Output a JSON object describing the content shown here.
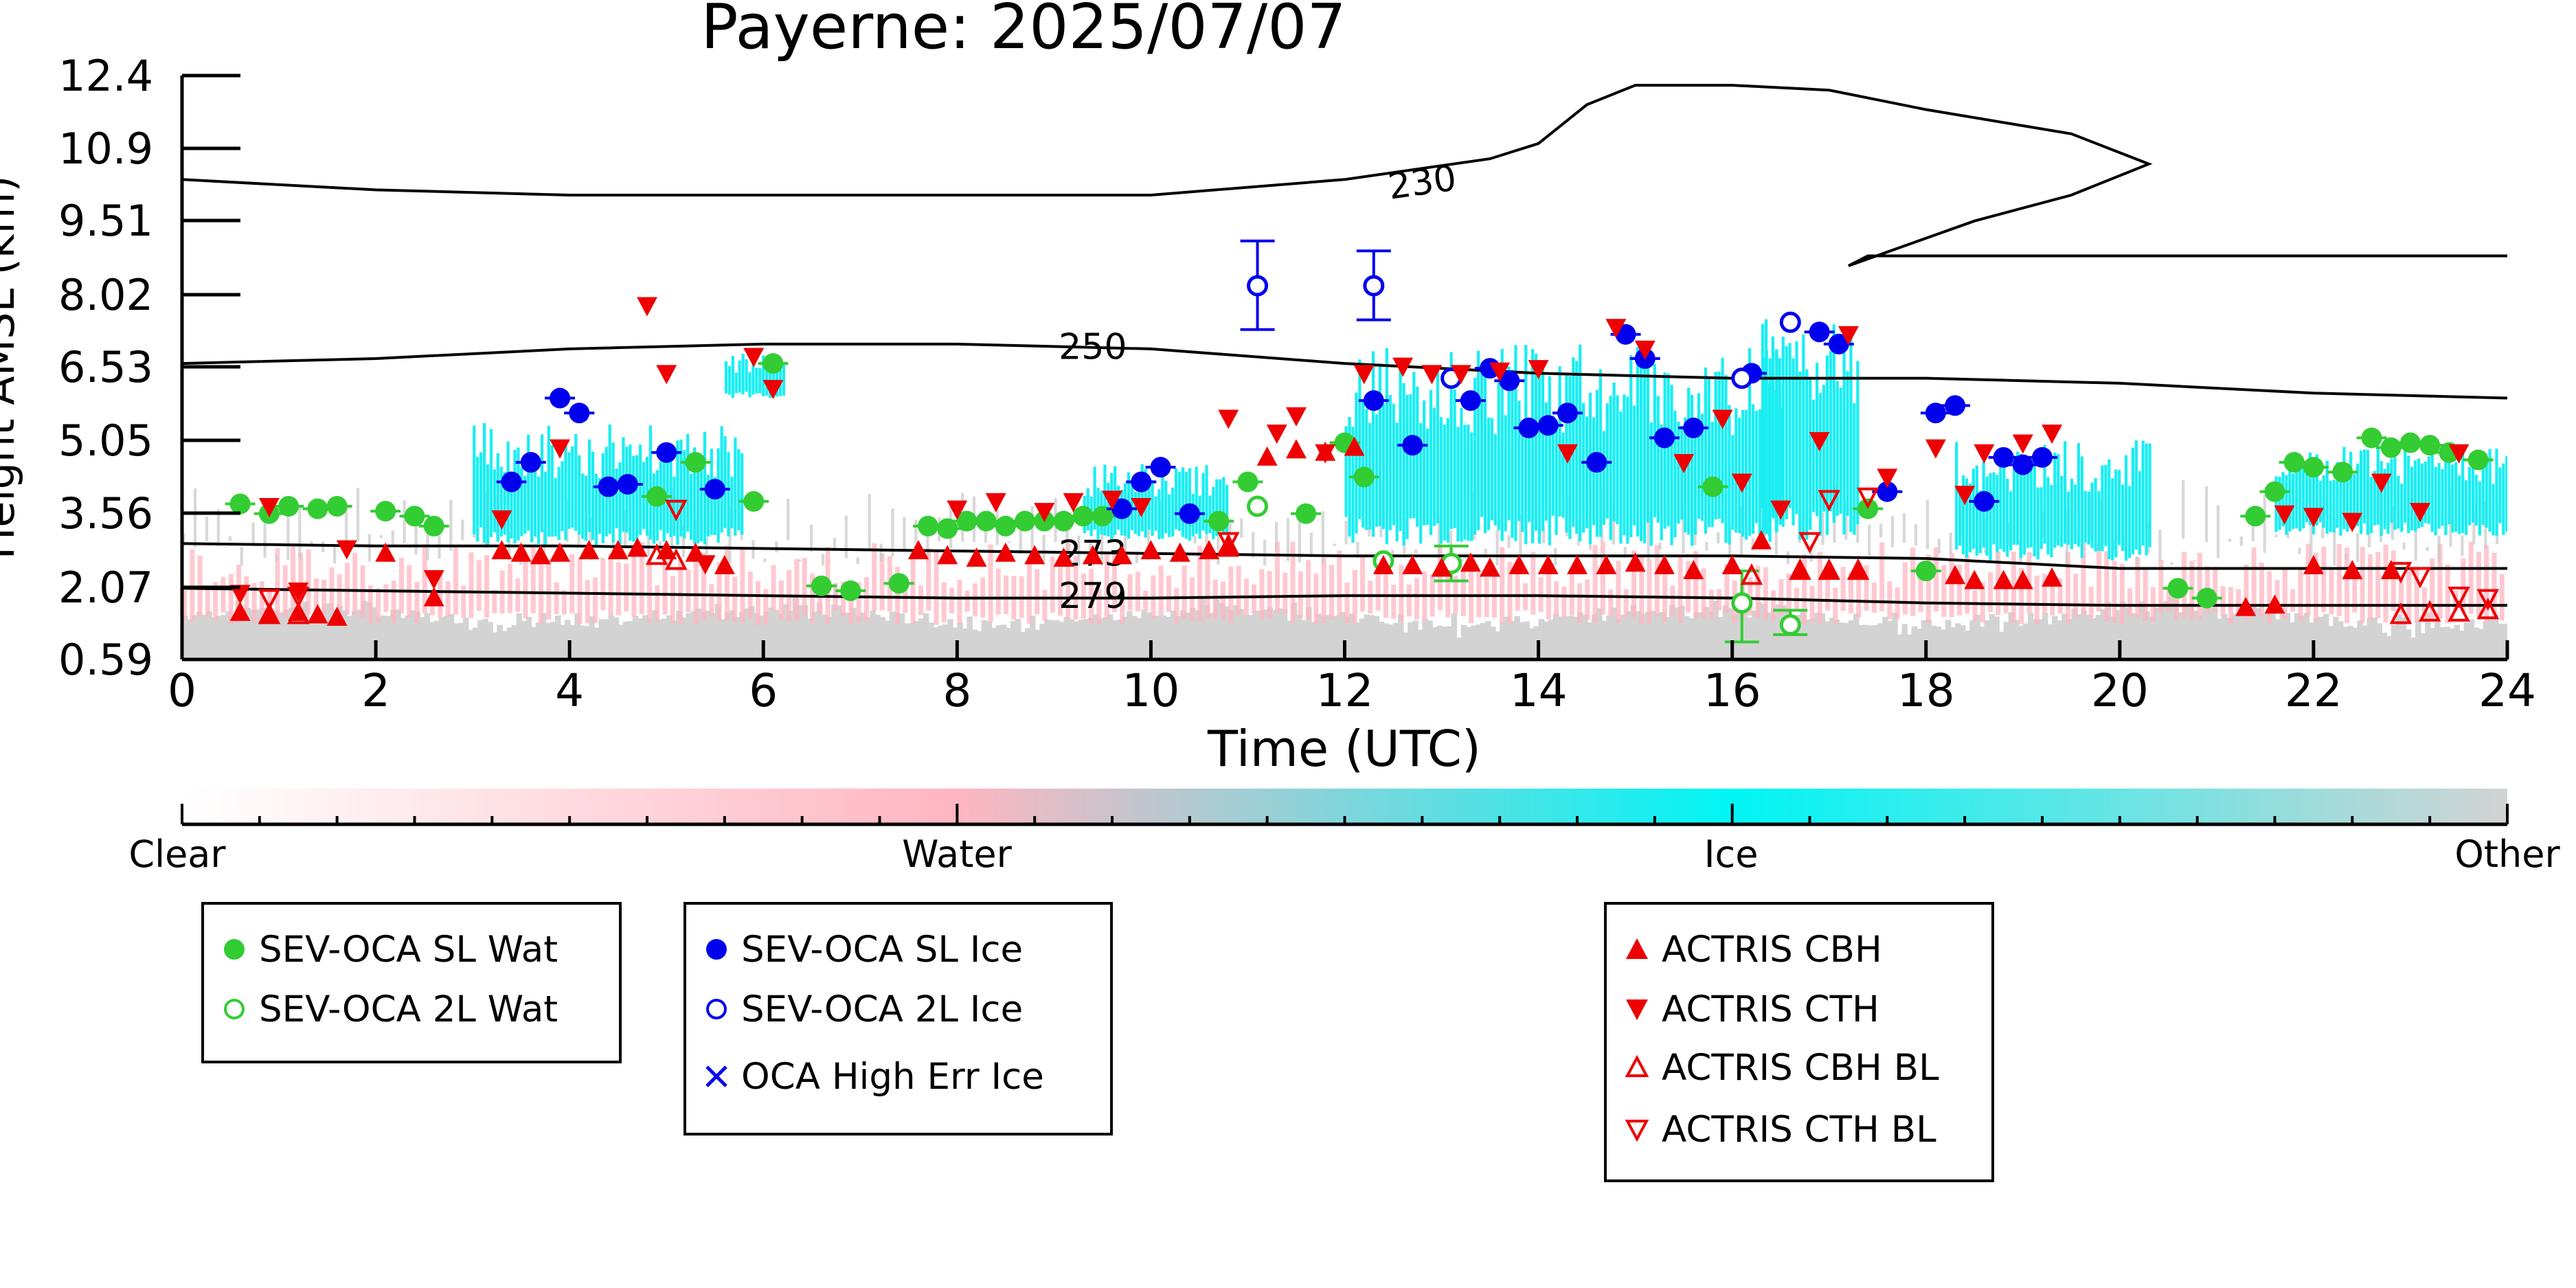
{
  "chart_data": {
    "type": "scatter",
    "title": "Payerne: 2025/07/07",
    "xlabel": "Time (UTC)",
    "ylabel": "Height AMSL (km)",
    "xlim": [
      0,
      24
    ],
    "ylim": [
      0.59,
      12.4
    ],
    "x_ticks": [
      "0",
      "2",
      "4",
      "6",
      "8",
      "10",
      "12",
      "14",
      "16",
      "18",
      "20",
      "22",
      "24"
    ],
    "y_ticks": [
      "0.59",
      "2.07",
      "3.56",
      "5.05",
      "6.53",
      "8.02",
      "9.51",
      "10.9",
      "12.4"
    ],
    "y_tick_values": [
      0.59,
      2.07,
      3.56,
      5.05,
      6.53,
      8.02,
      9.51,
      10.9,
      12.4
    ],
    "colorbar": {
      "labels": [
        "Clear",
        "Water",
        "Ice",
        "Other"
      ],
      "colors": [
        "#ffffff",
        "#ffb6c1",
        "#00ffff",
        "#d3d3d3"
      ]
    },
    "background_classification": {
      "note_free": true,
      "other_color": "#d3d3d3",
      "water_color": "#ffb6c1",
      "ice_color": "#19eef2",
      "ice_patches": [
        {
          "x": [
            3.0,
            5.8
          ],
          "y": [
            2.9,
            5.4
          ]
        },
        {
          "x": [
            5.6,
            6.2
          ],
          "y": [
            5.9,
            6.8
          ]
        },
        {
          "x": [
            9.3,
            10.8
          ],
          "y": [
            3.0,
            4.6
          ]
        },
        {
          "x": [
            12.0,
            16.5
          ],
          "y": [
            2.9,
            7.0
          ]
        },
        {
          "x": [
            16.3,
            17.3
          ],
          "y": [
            3.0,
            7.6
          ]
        },
        {
          "x": [
            18.3,
            20.3
          ],
          "y": [
            2.6,
            5.1
          ]
        },
        {
          "x": [
            21.6,
            24.0
          ],
          "y": [
            3.1,
            5.0
          ]
        }
      ]
    },
    "contours": [
      {
        "label": "230",
        "x": [
          0,
          2,
          4,
          6,
          8,
          10,
          12,
          13.5,
          14,
          14.5,
          15,
          16,
          17,
          18,
          19.5,
          20.3,
          19.5,
          18.5,
          17.2,
          17.4,
          18,
          20,
          24
        ],
        "y": [
          10.3,
          10.1,
          10.0,
          10.0,
          10.0,
          10.0,
          10.3,
          10.7,
          11.0,
          11.8,
          12.2,
          12.2,
          12.1,
          11.7,
          11.2,
          10.6,
          10.0,
          9.5,
          8.6,
          8.8,
          8.8,
          8.8,
          8.8
        ]
      },
      {
        "label": "250",
        "x": [
          0,
          2,
          4,
          6,
          8,
          10,
          12,
          14,
          16,
          18,
          20,
          22,
          24
        ],
        "y": [
          6.6,
          6.7,
          6.9,
          7.0,
          7.0,
          6.9,
          6.6,
          6.4,
          6.3,
          6.3,
          6.2,
          6.0,
          5.9
        ]
      },
      {
        "label": "273",
        "x": [
          0,
          2,
          4,
          6,
          8,
          10,
          12,
          14,
          16,
          18,
          20,
          22,
          24
        ],
        "y": [
          2.95,
          2.9,
          2.9,
          2.85,
          2.8,
          2.75,
          2.7,
          2.7,
          2.7,
          2.65,
          2.45,
          2.45,
          2.45
        ]
      },
      {
        "label": "279",
        "x": [
          0,
          2,
          4,
          6,
          8,
          10,
          12,
          14,
          16,
          18,
          20,
          22,
          24
        ],
        "y": [
          2.05,
          2.0,
          1.95,
          1.9,
          1.85,
          1.85,
          1.9,
          1.9,
          1.85,
          1.75,
          1.7,
          1.7,
          1.7
        ]
      }
    ],
    "series": [
      {
        "name": "SEV-OCA SL Wat",
        "marker": "filled-circle",
        "color": "#33cc33",
        "x": [
          0.6,
          0.9,
          1.1,
          1.4,
          1.6,
          2.1,
          2.4,
          2.6,
          4.9,
          5.3,
          5.9,
          6.1,
          6.6,
          6.9,
          7.4,
          7.7,
          7.9,
          8.1,
          8.3,
          8.5,
          8.7,
          8.9,
          9.1,
          9.3,
          9.5,
          10.7,
          11.0,
          11.6,
          12.0,
          12.2,
          15.8,
          17.4,
          18.0,
          20.6,
          20.9,
          21.4,
          21.6,
          21.8,
          22.0,
          22.3,
          22.6,
          22.8,
          23.0,
          23.2,
          23.4,
          23.7
        ],
        "y": [
          3.75,
          3.55,
          3.7,
          3.65,
          3.7,
          3.6,
          3.5,
          3.3,
          3.9,
          4.6,
          3.8,
          6.6,
          2.1,
          2.0,
          2.15,
          3.3,
          3.25,
          3.4,
          3.4,
          3.3,
          3.4,
          3.4,
          3.4,
          3.5,
          3.5,
          3.4,
          4.2,
          3.55,
          5.0,
          4.3,
          4.1,
          3.65,
          2.4,
          2.05,
          1.85,
          3.5,
          4.0,
          4.6,
          4.5,
          4.4,
          5.1,
          4.9,
          5.0,
          4.95,
          4.8,
          4.65
        ]
      },
      {
        "name": "SEV-OCA 2L Wat",
        "marker": "open-circle",
        "color": "#33cc33",
        "x": [
          11.1,
          12.4,
          13.1,
          16.1,
          16.6
        ],
        "y": [
          3.7,
          2.6,
          2.55,
          1.75,
          1.3
        ]
      },
      {
        "name": "SEV-OCA SL Ice",
        "marker": "filled-circle",
        "color": "#0000ee",
        "x": [
          3.4,
          3.6,
          3.9,
          4.1,
          4.4,
          4.6,
          5.0,
          5.5,
          9.7,
          9.9,
          10.1,
          10.4,
          12.3,
          12.7,
          13.3,
          13.5,
          13.7,
          13.9,
          14.1,
          14.3,
          14.6,
          14.9,
          15.1,
          15.3,
          15.6,
          16.2,
          16.9,
          17.1,
          17.6,
          18.1,
          18.3,
          18.6,
          18.8,
          19.0,
          19.2
        ],
        "y": [
          4.2,
          4.6,
          5.9,
          5.6,
          4.1,
          4.15,
          4.8,
          4.05,
          3.65,
          4.2,
          4.5,
          3.55,
          5.85,
          4.95,
          5.85,
          6.5,
          6.25,
          5.3,
          5.35,
          5.6,
          4.6,
          7.2,
          6.7,
          5.1,
          5.3,
          6.4,
          7.25,
          7.0,
          4.0,
          5.6,
          5.75,
          3.8,
          4.7,
          4.55,
          4.7
        ]
      },
      {
        "name": "SEV-OCA 2L Ice",
        "marker": "open-circle",
        "color": "#0000ee",
        "x": [
          11.1,
          12.3,
          13.1,
          16.1,
          16.6
        ],
        "y": [
          8.2,
          8.2,
          6.3,
          6.3,
          7.45
        ]
      },
      {
        "name": "OCA High Err Ice",
        "marker": "x",
        "color": "#0000ee",
        "x": [],
        "y": []
      },
      {
        "name": "ACTRIS CBH",
        "marker": "filled-triangle-up",
        "color": "#ee0000",
        "x": [
          0.6,
          0.9,
          1.2,
          1.4,
          1.6,
          2.1,
          2.6,
          3.3,
          3.5,
          3.7,
          3.9,
          4.2,
          4.5,
          4.7,
          5.0,
          5.3,
          5.6,
          7.6,
          7.9,
          8.2,
          8.5,
          8.8,
          9.1,
          9.4,
          9.7,
          10.0,
          10.3,
          10.6,
          10.8,
          11.2,
          11.5,
          11.8,
          12.1,
          12.4,
          12.7,
          13.0,
          13.3,
          13.5,
          13.8,
          14.1,
          14.4,
          14.7,
          15.0,
          15.3,
          15.6,
          16.0,
          16.3,
          16.7,
          17.0,
          17.3,
          18.3,
          18.5,
          18.8,
          19.0,
          19.3,
          21.3,
          21.6,
          22.0,
          22.4,
          22.8
        ],
        "y": [
          1.55,
          1.5,
          1.55,
          1.5,
          1.45,
          2.75,
          1.85,
          2.8,
          2.75,
          2.7,
          2.75,
          2.8,
          2.8,
          2.85,
          2.8,
          2.75,
          2.5,
          2.8,
          2.7,
          2.65,
          2.75,
          2.7,
          2.65,
          2.7,
          2.7,
          2.8,
          2.75,
          2.8,
          2.85,
          4.7,
          4.85,
          4.8,
          4.9,
          2.5,
          2.5,
          2.45,
          2.55,
          2.45,
          2.5,
          2.5,
          2.5,
          2.5,
          2.55,
          2.5,
          2.4,
          2.5,
          3.0,
          2.4,
          2.4,
          2.4,
          2.3,
          2.2,
          2.2,
          2.2,
          2.25,
          1.65,
          1.7,
          2.5,
          2.4,
          2.4
        ]
      },
      {
        "name": "ACTRIS CTH",
        "marker": "filled-triangle-down",
        "color": "#ee0000",
        "x": [
          0.6,
          0.9,
          1.2,
          1.7,
          2.6,
          3.3,
          3.9,
          4.8,
          5.0,
          5.4,
          5.9,
          6.1,
          8.0,
          8.4,
          8.9,
          9.2,
          9.6,
          9.9,
          10.8,
          11.3,
          11.5,
          11.8,
          12.2,
          12.6,
          12.9,
          13.2,
          13.6,
          14.0,
          14.3,
          14.8,
          15.1,
          15.5,
          15.9,
          16.1,
          16.5,
          16.9,
          17.2,
          17.6,
          18.1,
          18.4,
          18.6,
          19.0,
          19.3,
          21.7,
          22.0,
          22.4,
          22.7,
          23.1,
          23.5
        ],
        "y": [
          1.95,
          3.7,
          2.0,
          2.85,
          2.25,
          3.45,
          4.9,
          7.8,
          6.4,
          2.55,
          6.75,
          6.1,
          3.65,
          3.8,
          3.6,
          3.8,
          3.85,
          3.7,
          5.5,
          5.2,
          5.55,
          4.8,
          6.4,
          6.55,
          6.4,
          6.4,
          6.45,
          6.5,
          4.8,
          7.35,
          6.9,
          4.6,
          5.5,
          4.2,
          3.65,
          5.05,
          7.2,
          4.3,
          4.9,
          3.95,
          4.8,
          5.0,
          5.2,
          3.55,
          3.5,
          3.4,
          4.2,
          3.6,
          4.8
        ]
      },
      {
        "name": "ACTRIS CBH BL",
        "marker": "open-triangle-up",
        "color": "#ee0000",
        "x": [
          0.9,
          1.2,
          4.9,
          5.1,
          10.8,
          16.2,
          16.7,
          17.0,
          17.3,
          22.9,
          23.2,
          23.5,
          23.8
        ],
        "y": [
          1.5,
          1.5,
          2.7,
          2.6,
          2.9,
          2.3,
          2.4,
          2.4,
          2.4,
          1.5,
          1.55,
          1.55,
          1.6
        ]
      },
      {
        "name": "ACTRIS CTH BL",
        "marker": "open-triangle-down",
        "color": "#ee0000",
        "x": [
          0.9,
          1.2,
          5.1,
          10.8,
          16.8,
          17.0,
          17.4,
          22.9,
          23.1,
          23.5,
          23.8
        ],
        "y": [
          1.85,
          1.9,
          3.65,
          3.0,
          3.0,
          3.85,
          3.9,
          2.4,
          2.3,
          1.9,
          1.85
        ]
      }
    ],
    "legend_placement": "below the plot, three boxes"
  },
  "legends": {
    "box1": [
      {
        "label": "SEV-OCA SL Wat",
        "icon": "filled-circle",
        "color": "#33cc33"
      },
      {
        "label": "SEV-OCA 2L Wat",
        "icon": "open-circle",
        "color": "#33cc33"
      }
    ],
    "box2": [
      {
        "label": "SEV-OCA SL Ice",
        "icon": "filled-circle",
        "color": "#0000ee"
      },
      {
        "label": "SEV-OCA 2L Ice",
        "icon": "open-circle",
        "color": "#0000ee"
      },
      {
        "label": "OCA High Err Ice",
        "icon": "x",
        "color": "#0000ee"
      }
    ],
    "box3": [
      {
        "label": "ACTRIS CBH",
        "icon": "filled-triangle-up",
        "color": "#ee0000"
      },
      {
        "label": "ACTRIS CTH",
        "icon": "filled-triangle-down",
        "color": "#ee0000"
      },
      {
        "label": "ACTRIS CBH BL",
        "icon": "open-triangle-up",
        "color": "#ee0000"
      },
      {
        "label": "ACTRIS CTH BL",
        "icon": "open-triangle-down",
        "color": "#ee0000"
      }
    ]
  }
}
